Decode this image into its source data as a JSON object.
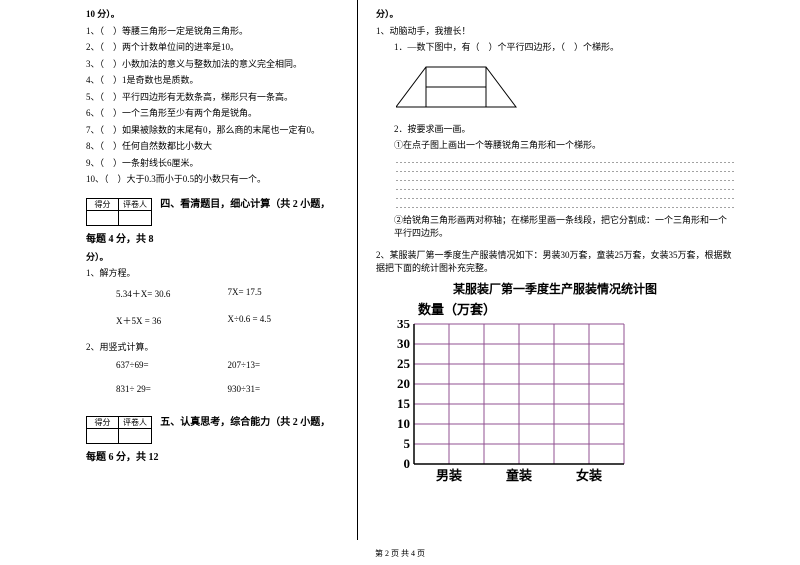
{
  "left": {
    "header": "10 分）。",
    "items": [
      "1、（　）等腰三角形一定是锐角三角形。",
      "2、（　）两个计数单位间的进率是10。",
      "3、（　）小数加法的意义与整数加法的意义完全相同。",
      "4、（　）1是奇数也是质数。",
      "5、（　）平行四边形有无数条高，梯形只有一条高。",
      "6、（　）一个三角形至少有两个角是锐角。",
      "7、（　）如果被除数的末尾有0，那么商的末尾也一定有0。",
      "8、（　）任何自然数都比小数大",
      "9、（　）一条射线长6厘米。",
      "10、（　）大于0.3而小于0.5的小数只有一个。"
    ],
    "score_head1": "得分",
    "score_head2": "评卷人",
    "section4": "四、看清题目，细心计算（共 2 小题，每题 4 分，共 8",
    "section4_cont": "分）。",
    "p1": "1、解方程。",
    "eq1a": "5.34＋X= 30.6",
    "eq1b": "7X= 17.5",
    "eq2a": "X＋5X = 36",
    "eq2b": "X÷0.6 = 4.5",
    "p2": "2、用竖式计算。",
    "eq3a": "637÷69=",
    "eq3b": "207÷13=",
    "eq4a": "831÷ 29=",
    "eq4b": "930÷31=",
    "section5": "五、认真思考，综合能力（共 2 小题，每题 6 分，共 12"
  },
  "right": {
    "header": "分）。",
    "p1": "1、动脑动手，我擅长！",
    "p1a": "1．—数下图中，有（　）个平行四边形，（　）个梯形。",
    "p2": "2．按要求画一画。",
    "p2a": "①在点子图上画出一个等腰锐角三角形和一个梯形。",
    "p2b": "②给锐角三角形画两对称轴；在梯形里画一条线段，把它分割成：一个三角形和一个平行四边形。",
    "p3": "2、某服装厂第一季度生产服装情况如下：男装30万套，童装25万套，女装35万套，根据数据把下面的统计图补充完整。",
    "chart": {
      "title": "某服装厂第一季度生产服装情况统计图",
      "sub": "数量（万套）",
      "y_ticks": [
        "35",
        "30",
        "25",
        "20",
        "15",
        "10",
        "5",
        "0"
      ],
      "x_labels": [
        "男装",
        "童装",
        "女装"
      ],
      "grid_color": "#905090",
      "bg": "#ffffff",
      "y_max": 35,
      "y_step": 5
    }
  },
  "footer": "第 2 页 共 4 页"
}
